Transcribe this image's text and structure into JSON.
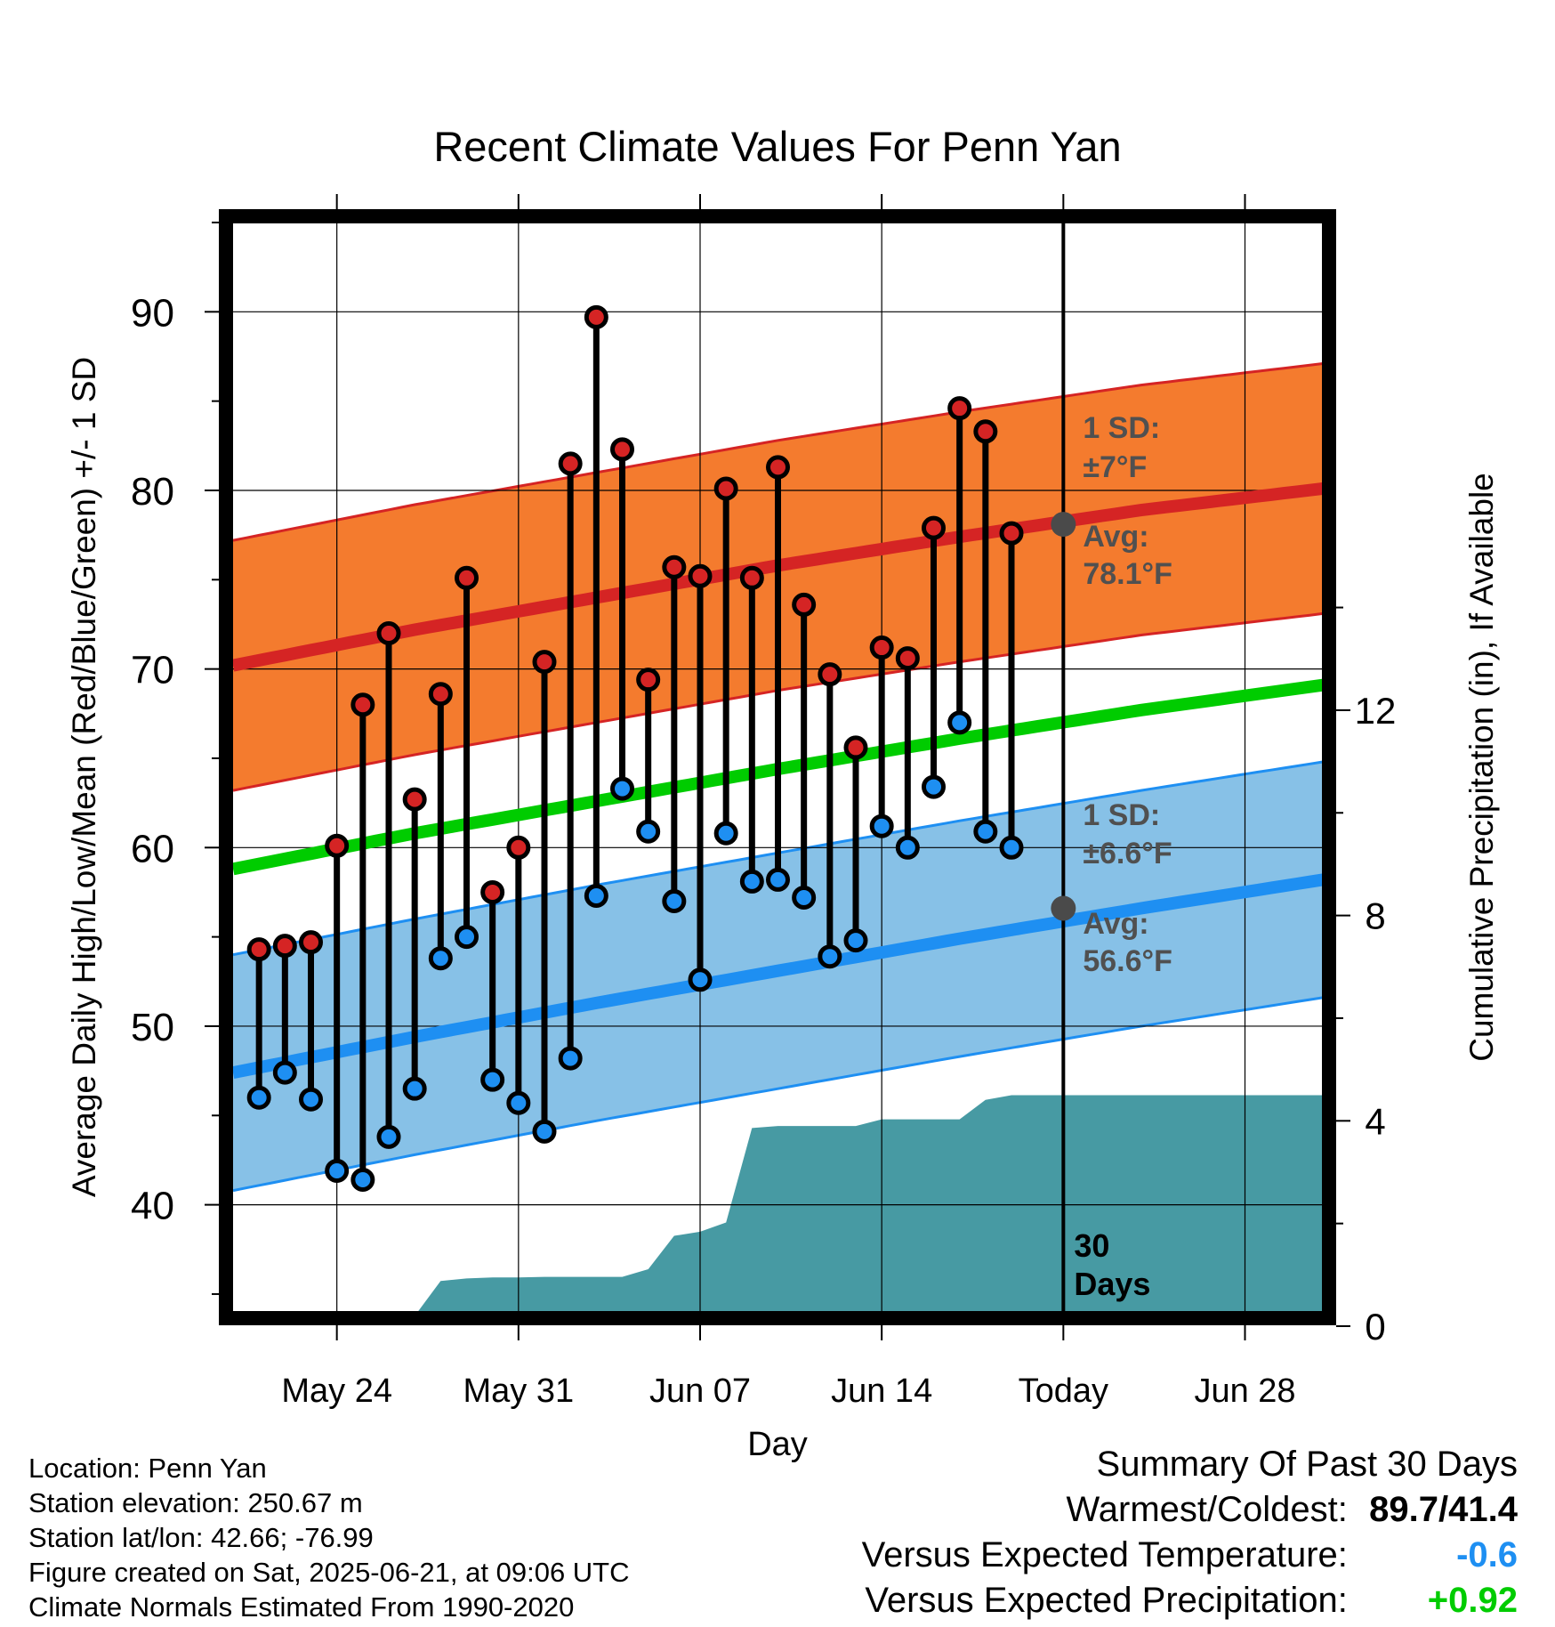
{
  "chart_data": {
    "type": "line",
    "title": "Recent Climate Values For Penn Yan",
    "xlabel": "Day",
    "ylabel": "Average Daily High/Low/Mean (Red/Blue/Green) +/- 1 SD",
    "y2label": "Cumulative Precipitation (in), If Available",
    "ylim": [
      34,
      95
    ],
    "y2lim": [
      0,
      21.5
    ],
    "xlim": [
      "2025-05-20",
      "2025-07-01"
    ],
    "yticks": [
      "40",
      "50",
      "60",
      "70",
      "80",
      "90"
    ],
    "y2ticks": [
      "0",
      "4",
      "8",
      "12"
    ],
    "xticks": [
      {
        "date": "2025-05-24",
        "label": "May 24"
      },
      {
        "date": "2025-05-31",
        "label": "May 31"
      },
      {
        "date": "2025-06-07",
        "label": "Jun 07"
      },
      {
        "date": "2025-06-14",
        "label": "Jun 14"
      },
      {
        "date": "2025-06-21",
        "label": "Today"
      },
      {
        "date": "2025-06-28",
        "label": "Jun 28"
      }
    ],
    "grid": true,
    "normals": {
      "dates": [
        "2025-05-20",
        "2025-05-27",
        "2025-06-03",
        "2025-06-10",
        "2025-06-17",
        "2025-06-24",
        "2025-07-01"
      ],
      "high_avg": [
        70.2,
        72.2,
        74.0,
        75.8,
        77.4,
        78.9,
        80.1
      ],
      "high_sd": 7.0,
      "low_avg": [
        47.4,
        49.4,
        51.3,
        53.1,
        54.9,
        56.6,
        58.2
      ],
      "low_sd": 6.6,
      "mean_avg": [
        58.8,
        60.8,
        62.6,
        64.4,
        66.1,
        67.7,
        69.1
      ]
    },
    "daily": {
      "dates": [
        "2025-05-21",
        "2025-05-22",
        "2025-05-23",
        "2025-05-24",
        "2025-05-25",
        "2025-05-26",
        "2025-05-27",
        "2025-05-28",
        "2025-05-29",
        "2025-05-30",
        "2025-05-31",
        "2025-06-01",
        "2025-06-02",
        "2025-06-03",
        "2025-06-04",
        "2025-06-05",
        "2025-06-06",
        "2025-06-07",
        "2025-06-08",
        "2025-06-09",
        "2025-06-10",
        "2025-06-11",
        "2025-06-12",
        "2025-06-13",
        "2025-06-14",
        "2025-06-15",
        "2025-06-16",
        "2025-06-17",
        "2025-06-18",
        "2025-06-19",
        "2025-06-20"
      ],
      "high": [
        54.3,
        54.5,
        54.7,
        60.1,
        68.0,
        72.0,
        62.7,
        68.6,
        75.1,
        57.5,
        60.0,
        70.4,
        81.5,
        89.7,
        82.3,
        69.4,
        75.7,
        75.2,
        80.1,
        75.1,
        81.3,
        73.6,
        69.7,
        65.6,
        71.2,
        70.6,
        77.9,
        84.6,
        83.3,
        77.6,
        null
      ],
      "low": [
        46.0,
        47.4,
        45.9,
        41.9,
        41.4,
        43.8,
        46.5,
        53.8,
        55.0,
        47.0,
        45.7,
        44.1,
        48.2,
        57.3,
        63.3,
        60.9,
        57.0,
        52.6,
        60.8,
        58.1,
        58.2,
        57.2,
        53.9,
        54.8,
        61.2,
        60.0,
        63.4,
        67.0,
        60.9,
        60.0,
        null
      ]
    },
    "precip_cumulative": {
      "dates": [
        "2025-05-20",
        "2025-05-23",
        "2025-05-24",
        "2025-05-25",
        "2025-05-26",
        "2025-05-27",
        "2025-05-28",
        "2025-05-29",
        "2025-05-30",
        "2025-05-31",
        "2025-06-01",
        "2025-06-02",
        "2025-06-03",
        "2025-06-04",
        "2025-06-05",
        "2025-06-06",
        "2025-06-07",
        "2025-06-08",
        "2025-06-09",
        "2025-06-10",
        "2025-06-11",
        "2025-06-12",
        "2025-06-13",
        "2025-06-14",
        "2025-06-15",
        "2025-06-16",
        "2025-06-17",
        "2025-06-18",
        "2025-06-19",
        "2025-06-20",
        "2025-06-21",
        "2025-07-01"
      ],
      "values": [
        0.0,
        0.0,
        0.03,
        0.2,
        0.2,
        0.2,
        0.88,
        0.93,
        0.95,
        0.95,
        0.96,
        0.96,
        0.96,
        0.96,
        1.11,
        1.76,
        1.84,
        2.02,
        3.86,
        3.9,
        3.9,
        3.9,
        3.9,
        4.03,
        4.03,
        4.03,
        4.03,
        4.41,
        4.5,
        4.5,
        4.5,
        4.5
      ]
    },
    "today": "2025-06-21",
    "today_label": "Today",
    "colors": {
      "high_band": "#f47b2e",
      "high_line": "#d52424",
      "low_band": "#87c1e7",
      "low_line": "#1e8ff2",
      "mean_line": "#00cc00",
      "precip": "#479aa3",
      "high_dot": "#d52424",
      "low_dot": "#1e8ff2",
      "avg_dot": "#4a4a4a",
      "annotation": "#505050"
    },
    "annotations": {
      "high_sd_line1": "1 SD:",
      "high_sd_line2": "±7°F",
      "high_avg_line1": "Avg:",
      "high_avg_line2": "78.1°F",
      "high_avg_value": 78.1,
      "low_sd_line1": "1 SD:",
      "low_sd_line2": "±6.6°F",
      "low_avg_line1": "Avg:",
      "low_avg_line2": "56.6°F",
      "low_avg_value": 56.6,
      "days_line1": "30",
      "days_line2": "Days"
    }
  },
  "footer": {
    "location": "Location: Penn Yan",
    "elevation": "Station elevation: 250.67 m",
    "latlon": "Station lat/lon: 42.66; -76.99",
    "created": "Figure created on Sat, 2025-06-21, at 09:06 UTC",
    "normals": "Climate Normals Estimated From 1990-2020"
  },
  "summary": {
    "title": "Summary Of Past 30 Days",
    "warm_cold_label": "Warmest/Coldest:",
    "warm_cold_value": "89.7/41.4",
    "temp_label": "Versus Expected Temperature:",
    "temp_value": "-0.6",
    "temp_color": "#1e8ff2",
    "precip_label": "Versus Expected Precipitation:",
    "precip_value": "+0.92",
    "precip_color": "#00cc00"
  }
}
